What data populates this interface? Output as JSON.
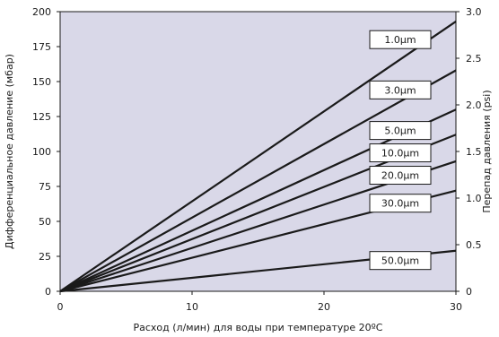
{
  "chart_data": {
    "type": "line",
    "xlabel": "Расход (л/мин) для воды при температуре 20ºC",
    "ylabel": "Дифференциальное давление (мбар)",
    "y2label": "Перепад давления (psi)",
    "xlim": [
      0,
      30
    ],
    "ylim": [
      0,
      200
    ],
    "y2lim": [
      0,
      3.0
    ],
    "xticks": [
      "0",
      "10",
      "20",
      "30"
    ],
    "yticks": [
      "0",
      "25",
      "50",
      "75",
      "100",
      "125",
      "150",
      "175",
      "200"
    ],
    "y2ticks": [
      "0",
      "0.5",
      "1.0",
      "1.5",
      "2.0",
      "2.5",
      "3.0"
    ],
    "grid": false,
    "series": [
      {
        "name": "1.0µm",
        "x": [
          0,
          30
        ],
        "y": [
          0,
          193
        ]
      },
      {
        "name": "3.0µm",
        "x": [
          0,
          30
        ],
        "y": [
          0,
          158
        ]
      },
      {
        "name": "5.0µm",
        "x": [
          0,
          30
        ],
        "y": [
          0,
          130
        ]
      },
      {
        "name": "10.0µm",
        "x": [
          0,
          30
        ],
        "y": [
          0,
          112
        ]
      },
      {
        "name": "20.0µm",
        "x": [
          0,
          30
        ],
        "y": [
          0,
          93
        ]
      },
      {
        "name": "30.0µm",
        "x": [
          0,
          30
        ],
        "y": [
          0,
          72
        ]
      },
      {
        "name": "50.0µm",
        "x": [
          0,
          30
        ],
        "y": [
          0,
          29
        ]
      }
    ],
    "label_positions_y": [
      180,
      144,
      115,
      99,
      83,
      63,
      22
    ]
  },
  "colors": {
    "plot_background": "#d9d8e8",
    "line": "#1a1a1a",
    "label_box": "#ffffff"
  }
}
